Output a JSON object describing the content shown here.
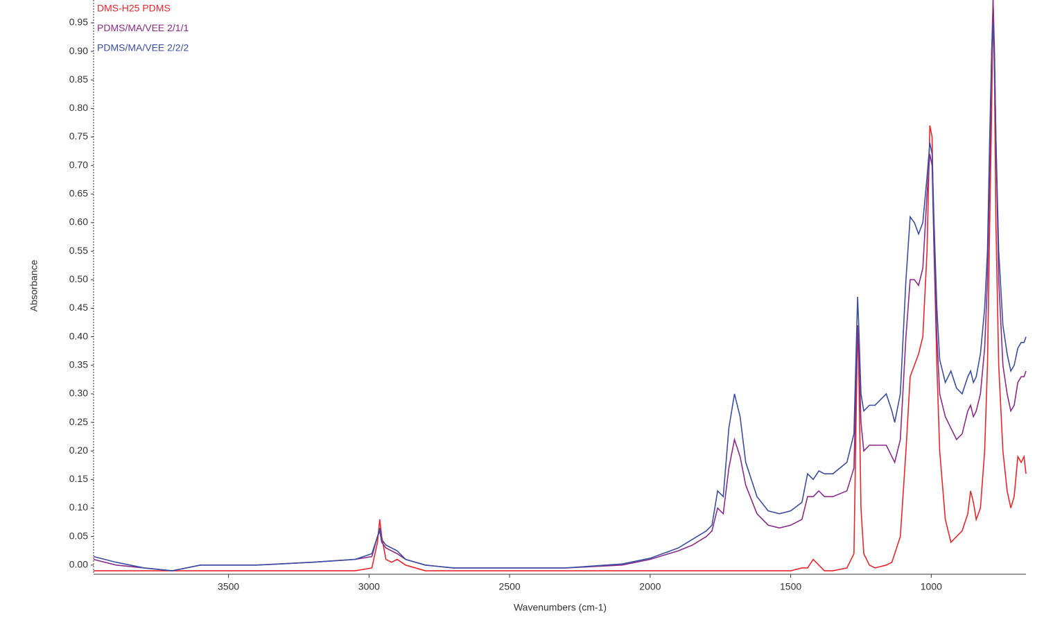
{
  "chart_data": {
    "type": "line",
    "x_label": "Wavenumbers (cm-1)",
    "y_label": "Absorbance",
    "xlim": [
      3980,
      663
    ],
    "ylim": [
      -0.016,
      0.99
    ],
    "xticks": [
      3500,
      3000,
      2500,
      2000,
      1500,
      1000
    ],
    "yticks": [
      {
        "value": 0,
        "label": "0.00"
      },
      {
        "value": 0.05,
        "label": "0.05"
      },
      {
        "value": 0.1,
        "label": "0.10"
      },
      {
        "value": 0.15,
        "label": "0.15"
      },
      {
        "value": 0.2,
        "label": "0.20"
      },
      {
        "value": 0.25,
        "label": "0.25"
      },
      {
        "value": 0.3,
        "label": "0.30"
      },
      {
        "value": 0.35,
        "label": "0.35"
      },
      {
        "value": 0.4,
        "label": "0.40"
      },
      {
        "value": 0.45,
        "label": "0.45"
      },
      {
        "value": 0.5,
        "label": "0.50"
      },
      {
        "value": 0.55,
        "label": "0.55"
      },
      {
        "value": 0.6,
        "label": "0.60"
      },
      {
        "value": 0.65,
        "label": "0.65"
      },
      {
        "value": 0.7,
        "label": "0.70"
      },
      {
        "value": 0.75,
        "label": "0.75"
      },
      {
        "value": 0.8,
        "label": "0.80"
      },
      {
        "value": 0.85,
        "label": "0.85"
      },
      {
        "value": 0.9,
        "label": "0.90"
      },
      {
        "value": 0.95,
        "label": "0.95"
      }
    ],
    "grid": false,
    "legend": "top-left",
    "x": [
      3980,
      3900,
      3800,
      3700,
      3600,
      3400,
      3200,
      3050,
      2990,
      2970,
      2962,
      2955,
      2940,
      2920,
      2900,
      2870,
      2800,
      2700,
      2500,
      2300,
      2100,
      2000,
      1900,
      1850,
      1800,
      1780,
      1760,
      1740,
      1720,
      1700,
      1680,
      1660,
      1620,
      1580,
      1540,
      1500,
      1460,
      1440,
      1420,
      1400,
      1380,
      1350,
      1300,
      1275,
      1262,
      1258,
      1250,
      1240,
      1220,
      1200,
      1160,
      1140,
      1130,
      1110,
      1090,
      1075,
      1060,
      1045,
      1030,
      1015,
      1005,
      997,
      990,
      980,
      970,
      950,
      930,
      910,
      890,
      870,
      860,
      850,
      840,
      825,
      810,
      800,
      792,
      785,
      780,
      775,
      770,
      760,
      745,
      730,
      717,
      705,
      692,
      680,
      670,
      663
    ],
    "series": [
      {
        "name": "DMS-H25 PDMS",
        "color": "#e8262a",
        "values": [
          -0.01,
          -0.01,
          -0.01,
          -0.01,
          -0.01,
          -0.01,
          -0.01,
          -0.01,
          -0.005,
          0.04,
          0.08,
          0.05,
          0.01,
          0.005,
          0.01,
          0.0,
          -0.01,
          -0.01,
          -0.01,
          -0.01,
          -0.01,
          -0.01,
          -0.01,
          -0.01,
          -0.01,
          -0.01,
          -0.01,
          -0.01,
          -0.01,
          -0.01,
          -0.01,
          -0.01,
          -0.01,
          -0.01,
          -0.01,
          -0.01,
          -0.005,
          -0.005,
          0.01,
          0.0,
          -0.01,
          -0.01,
          -0.005,
          0.02,
          0.42,
          0.35,
          0.1,
          0.02,
          0.0,
          -0.005,
          0.0,
          0.005,
          0.02,
          0.05,
          0.2,
          0.33,
          0.35,
          0.37,
          0.4,
          0.55,
          0.77,
          0.75,
          0.55,
          0.35,
          0.2,
          0.08,
          0.04,
          0.05,
          0.06,
          0.09,
          0.13,
          0.11,
          0.08,
          0.1,
          0.2,
          0.35,
          0.6,
          0.8,
          0.99,
          0.85,
          0.6,
          0.35,
          0.2,
          0.13,
          0.1,
          0.12,
          0.19,
          0.18,
          0.19,
          0.16
        ]
      },
      {
        "name": "PDMS/MA/VEE 2/1/1",
        "color": "#8a2a8a",
        "values": [
          0.01,
          0.0,
          -0.005,
          -0.01,
          0.0,
          0.0,
          0.005,
          0.01,
          0.015,
          0.05,
          0.06,
          0.04,
          0.03,
          0.025,
          0.02,
          0.01,
          0.0,
          -0.005,
          -0.005,
          -0.005,
          0.0,
          0.01,
          0.025,
          0.035,
          0.05,
          0.06,
          0.1,
          0.09,
          0.17,
          0.22,
          0.19,
          0.14,
          0.09,
          0.07,
          0.065,
          0.07,
          0.08,
          0.12,
          0.12,
          0.13,
          0.12,
          0.12,
          0.13,
          0.17,
          0.42,
          0.38,
          0.25,
          0.2,
          0.21,
          0.21,
          0.21,
          0.19,
          0.18,
          0.22,
          0.4,
          0.5,
          0.5,
          0.49,
          0.52,
          0.65,
          0.72,
          0.7,
          0.55,
          0.4,
          0.3,
          0.26,
          0.24,
          0.22,
          0.23,
          0.27,
          0.28,
          0.26,
          0.27,
          0.3,
          0.38,
          0.5,
          0.7,
          0.9,
          0.99,
          0.9,
          0.75,
          0.5,
          0.35,
          0.3,
          0.27,
          0.28,
          0.32,
          0.33,
          0.33,
          0.34
        ]
      },
      {
        "name": "PDMS/MA/VEE 2/2/2",
        "color": "#3a4ea0",
        "values": [
          0.015,
          0.005,
          -0.005,
          -0.01,
          0.0,
          0.0,
          0.005,
          0.01,
          0.02,
          0.05,
          0.065,
          0.045,
          0.035,
          0.03,
          0.025,
          0.01,
          0.0,
          -0.005,
          -0.005,
          -0.005,
          0.002,
          0.012,
          0.03,
          0.045,
          0.06,
          0.07,
          0.13,
          0.12,
          0.24,
          0.3,
          0.26,
          0.18,
          0.12,
          0.095,
          0.09,
          0.095,
          0.11,
          0.16,
          0.15,
          0.165,
          0.16,
          0.16,
          0.18,
          0.23,
          0.47,
          0.42,
          0.3,
          0.27,
          0.28,
          0.28,
          0.3,
          0.27,
          0.25,
          0.3,
          0.5,
          0.61,
          0.6,
          0.58,
          0.6,
          0.68,
          0.74,
          0.72,
          0.6,
          0.45,
          0.36,
          0.32,
          0.34,
          0.31,
          0.3,
          0.33,
          0.34,
          0.32,
          0.33,
          0.37,
          0.45,
          0.55,
          0.75,
          0.9,
          0.95,
          0.88,
          0.75,
          0.55,
          0.42,
          0.37,
          0.34,
          0.35,
          0.38,
          0.39,
          0.39,
          0.4
        ]
      }
    ]
  }
}
